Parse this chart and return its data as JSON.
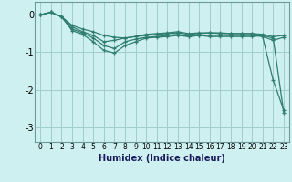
{
  "xlabel": "Humidex (Indice chaleur)",
  "bg_color": "#cff0f0",
  "line_color": "#2e7d6e",
  "grid_color": "#a0cccc",
  "xlim": [
    -0.5,
    23.5
  ],
  "ylim": [
    -3.4,
    0.35
  ],
  "yticks": [
    0,
    -1,
    -2,
    -3
  ],
  "xtick_labels": [
    "0",
    "1",
    "2",
    "3",
    "4",
    "5",
    "6",
    "7",
    "8",
    "9",
    "10",
    "11",
    "12",
    "13",
    "14",
    "15",
    "16",
    "17",
    "18",
    "19",
    "20",
    "21",
    "22",
    "23"
  ],
  "series": [
    [
      0.0,
      0.07,
      -0.05,
      -0.28,
      -0.38,
      -0.45,
      -0.55,
      -0.6,
      -0.62,
      -0.58,
      -0.55,
      -0.52,
      -0.5,
      -0.48,
      -0.52,
      -0.5,
      -0.48,
      -0.48,
      -0.5,
      -0.5,
      -0.5,
      -0.52,
      -0.58,
      -0.55
    ],
    [
      0.0,
      0.07,
      -0.05,
      -0.32,
      -0.45,
      -0.55,
      -0.72,
      -0.68,
      -0.62,
      -0.58,
      -0.52,
      -0.5,
      -0.48,
      -0.45,
      -0.5,
      -0.48,
      -0.48,
      -0.5,
      -0.5,
      -0.5,
      -0.5,
      -0.58,
      -0.68,
      -0.6
    ],
    [
      0.0,
      0.07,
      -0.05,
      -0.38,
      -0.48,
      -0.62,
      -0.82,
      -0.9,
      -0.72,
      -0.65,
      -0.6,
      -0.58,
      -0.55,
      -0.52,
      -0.58,
      -0.55,
      -0.55,
      -0.55,
      -0.55,
      -0.55,
      -0.55,
      -0.58,
      -1.75,
      -2.55
    ],
    [
      0.0,
      0.07,
      -0.05,
      -0.42,
      -0.52,
      -0.72,
      -0.95,
      -1.02,
      -0.82,
      -0.72,
      -0.62,
      -0.6,
      -0.58,
      -0.55,
      -0.58,
      -0.55,
      -0.58,
      -0.58,
      -0.58,
      -0.58,
      -0.58,
      -0.55,
      -0.62,
      -2.62
    ]
  ]
}
